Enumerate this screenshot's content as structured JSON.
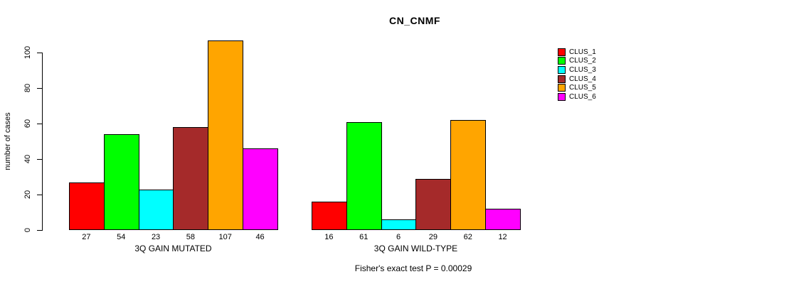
{
  "title": "CN_CNMF",
  "y_axis": {
    "label": "number of cases",
    "ticks": [
      "0",
      "20",
      "40",
      "60",
      "80",
      "100"
    ]
  },
  "annotation": {
    "text": "Fisher's exact test P = 0.00029"
  },
  "legend": {
    "items": [
      {
        "label": "CLUS_1",
        "color": "#FF0000"
      },
      {
        "label": "CLUS_2",
        "color": "#00FF00"
      },
      {
        "label": "CLUS_3",
        "color": "#00FFFF"
      },
      {
        "label": "CLUS_4",
        "color": "#A52A2A"
      },
      {
        "label": "CLUS_5",
        "color": "#FFA500"
      },
      {
        "label": "CLUS_6",
        "color": "#FF00FF"
      }
    ]
  },
  "chart_data": {
    "type": "bar",
    "title": "CN_CNMF",
    "xlabel": "",
    "ylabel": "number of cases",
    "ylim": [
      0,
      110
    ],
    "yticks": [
      0,
      20,
      40,
      60,
      80,
      100
    ],
    "grid": false,
    "legend_position": "right",
    "categories": [
      "3Q GAIN MUTATED",
      "3Q GAIN WILD-TYPE"
    ],
    "series": [
      {
        "name": "CLUS_1",
        "color": "#FF0000",
        "values": [
          27,
          16
        ]
      },
      {
        "name": "CLUS_2",
        "color": "#00FF00",
        "values": [
          54,
          61
        ]
      },
      {
        "name": "CLUS_3",
        "color": "#00FFFF",
        "values": [
          23,
          6
        ]
      },
      {
        "name": "CLUS_4",
        "color": "#A52A2A",
        "values": [
          58,
          29
        ]
      },
      {
        "name": "CLUS_5",
        "color": "#FFA500",
        "values": [
          107,
          62
        ]
      },
      {
        "name": "CLUS_6",
        "color": "#FF00FF",
        "values": [
          46,
          12
        ]
      }
    ],
    "bar_value_labels_shown": true,
    "annotation": "Fisher's exact test P = 0.00029"
  }
}
